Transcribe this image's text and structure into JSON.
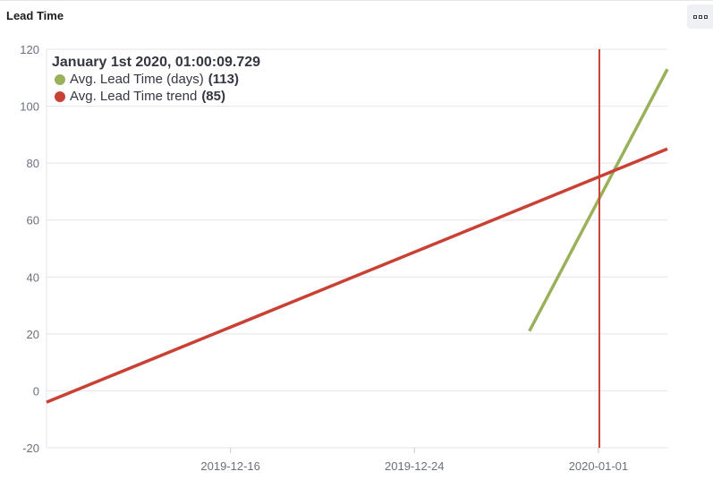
{
  "panel": {
    "title": "Lead Time"
  },
  "menu": {
    "icon": "panel-options-icon"
  },
  "tooltip": {
    "title": "January 1st 2020, 01:00:09.729",
    "rows": [
      {
        "name": "Avg. Lead Time (days)",
        "value": "(113)",
        "color": "#9ab15a"
      },
      {
        "name": "Avg. Lead Time trend",
        "value": "(85)",
        "color": "#c94135"
      }
    ]
  },
  "chart_data": {
    "type": "line",
    "xlabel": "",
    "ylabel": "",
    "ylim": [
      -20,
      120
    ],
    "xlim": [
      "2019-12-08",
      "2020-01-04"
    ],
    "x_ticks": [
      "2019-12-16",
      "2019-12-24",
      "2020-01-01"
    ],
    "y_ticks": [
      120,
      100,
      80,
      60,
      40,
      20,
      0,
      -20
    ],
    "grid": true,
    "series": [
      {
        "name": "Avg. Lead Time (days)",
        "color": "#9ab15a",
        "points": [
          [
            "2019-12-29",
            21
          ],
          [
            "2020-01-04",
            113
          ]
        ]
      },
      {
        "name": "Avg. Lead Time trend",
        "color": "#c94135",
        "points": [
          [
            "2019-12-08",
            -4
          ],
          [
            "2020-01-04",
            85
          ]
        ]
      }
    ],
    "cursor": {
      "x": "2020-01-01 01:00:09.729",
      "color": "#c94135"
    }
  }
}
